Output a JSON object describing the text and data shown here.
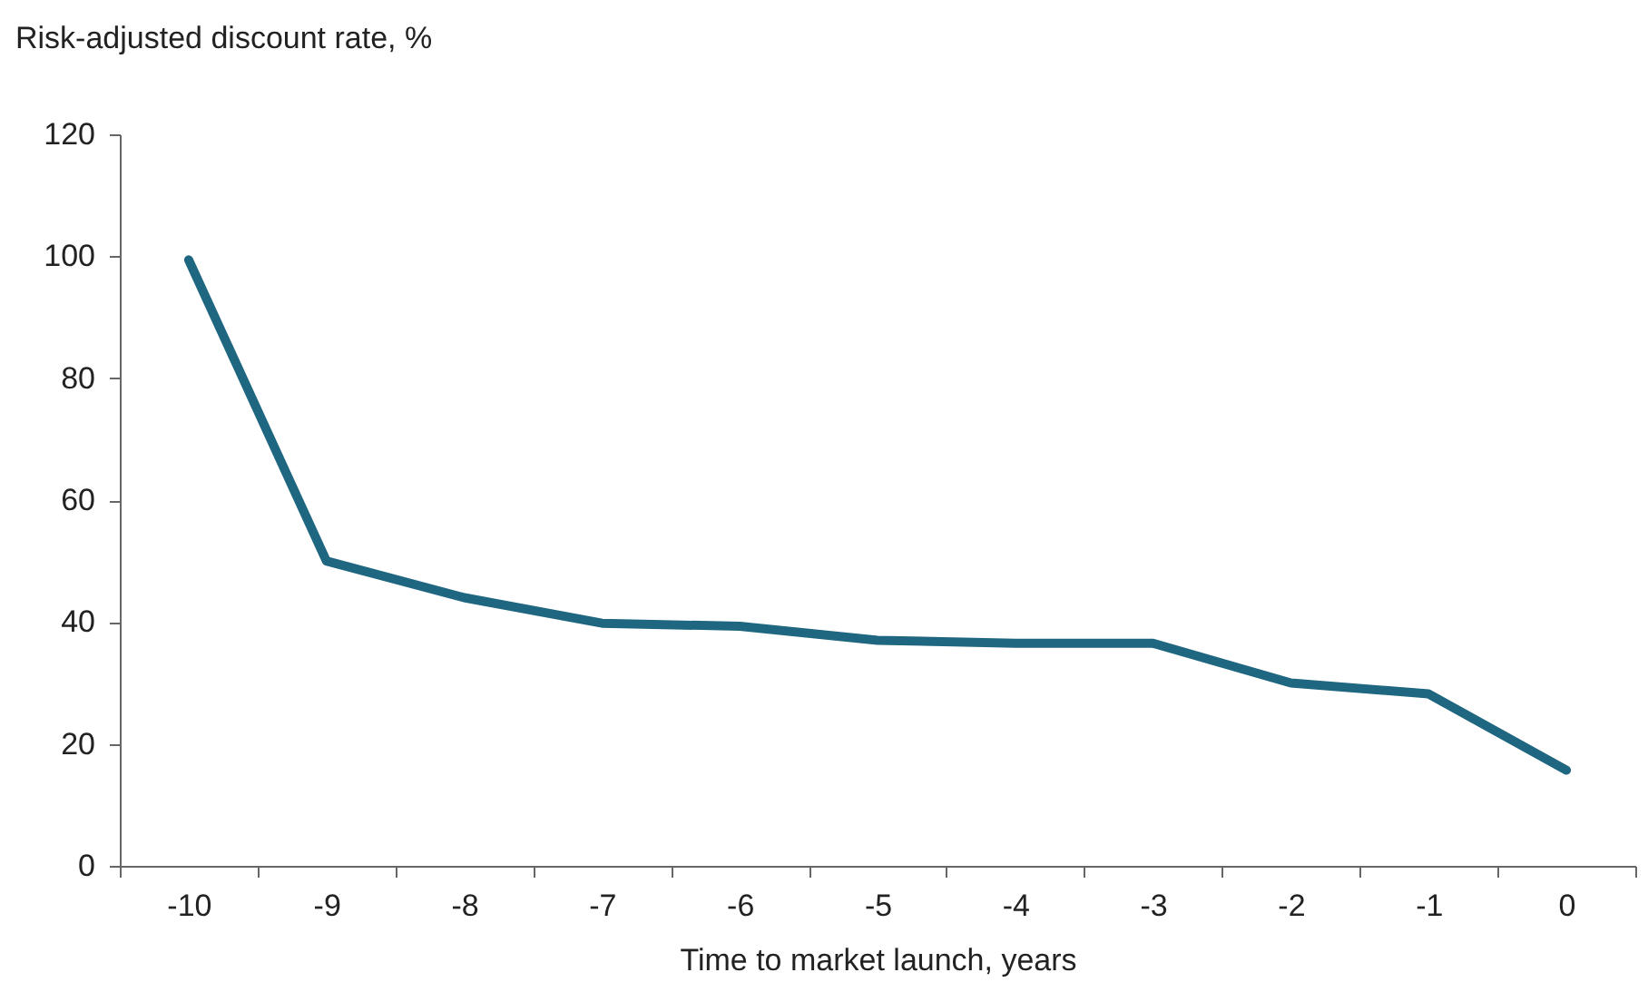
{
  "chart_data": {
    "type": "line",
    "xlabel": "Time to market launch, years",
    "ylabel": "Risk-adjusted discount rate, %",
    "categories": [
      "-10",
      "-9",
      "-8",
      "-7",
      "-6",
      "-5",
      "-4",
      "-3",
      "-2",
      "-1",
      "0"
    ],
    "series": [
      {
        "color": "#1f6680",
        "values": [
          99.4,
          50,
          44,
          39.8,
          39.3,
          37,
          36.5,
          36.5,
          30,
          28.2,
          15.7
        ]
      }
    ],
    "ylim": [
      0,
      120
    ],
    "yticks": [
      0,
      20,
      40,
      60,
      80,
      100,
      120
    ],
    "grid": false,
    "legend": false,
    "marker": "none",
    "line_style": "solid"
  }
}
